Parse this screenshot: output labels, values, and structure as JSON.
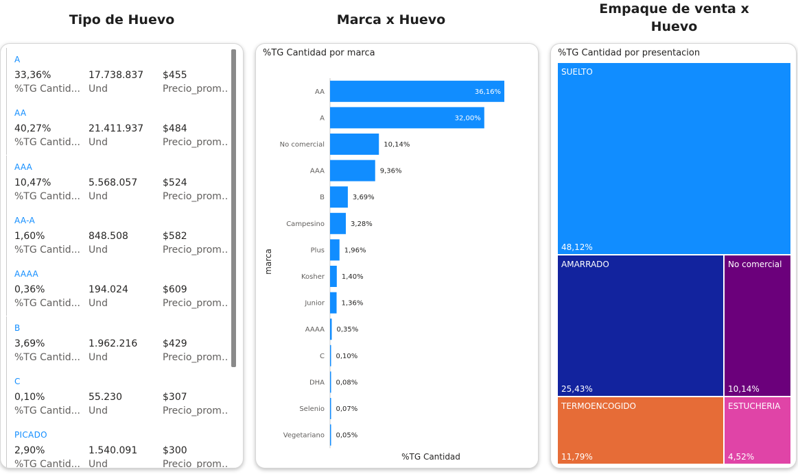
{
  "titles": {
    "tipo": "Tipo de Huevo",
    "marca": "Marca x Huevo",
    "empaque": "Empaque de venta x\nHuevo"
  },
  "list": {
    "items": [
      {
        "name": "A",
        "pct": "33,36%",
        "und": "17.738.837",
        "precio": "$455"
      },
      {
        "name": "AA",
        "pct": "40,27%",
        "und": "21.411.937",
        "precio": "$484"
      },
      {
        "name": "AAA",
        "pct": "10,47%",
        "und": "5.568.057",
        "precio": "$524"
      },
      {
        "name": "AA-A",
        "pct": "1,60%",
        "und": "848.508",
        "precio": "$582"
      },
      {
        "name": "AAAA",
        "pct": "0,36%",
        "und": "194.024",
        "precio": "$609"
      },
      {
        "name": "B",
        "pct": "3,69%",
        "und": "1.962.216",
        "precio": "$429"
      },
      {
        "name": "C",
        "pct": "0,10%",
        "und": "55.230",
        "precio": "$307"
      },
      {
        "name": "PICADO",
        "pct": "2,90%",
        "und": "1.540.091",
        "precio": "$300"
      }
    ],
    "label_pct": "%TG Cantid...",
    "label_und": "Und",
    "label_precio": "Precio_prome..."
  },
  "chart_data": {
    "type": "bar",
    "orientation": "horizontal",
    "title": "%TG Cantidad por marca",
    "xlabel": "%TG Cantidad",
    "ylabel": "marca",
    "categories": [
      "AA",
      "A",
      "No comercial",
      "AAA",
      "B",
      "Campesino",
      "Plus",
      "Kosher",
      "Junior",
      "AAAA",
      "C",
      "DHA",
      "Selenio",
      "Vegetariano"
    ],
    "values": [
      36.16,
      32.0,
      10.14,
      9.36,
      3.69,
      3.28,
      1.96,
      1.4,
      1.36,
      0.35,
      0.1,
      0.08,
      0.07,
      0.05
    ],
    "labels": [
      "36,16%",
      "32,00%",
      "10,14%",
      "9,36%",
      "3,69%",
      "3,28%",
      "1,96%",
      "1,40%",
      "1,36%",
      "0,35%",
      "0,10%",
      "0,08%",
      "0,07%",
      "0,05%"
    ],
    "xlim": [
      0,
      36.16
    ],
    "color": "#118dff"
  },
  "treemap": {
    "title": "%TG Cantidad por presentacion",
    "tiles": [
      {
        "name": "SUELTO",
        "value": "48,12%",
        "color": "#118dff"
      },
      {
        "name": "AMARRADO",
        "value": "25,43%",
        "color": "#12239e"
      },
      {
        "name": "No comercial",
        "value": "10,14%",
        "color": "#6b007b"
      },
      {
        "name": "TERMOENCOGIDO",
        "value": "11,79%",
        "color": "#e66c37"
      },
      {
        "name": "ESTUCHERIA",
        "value": "4,52%",
        "color": "#e044a7"
      }
    ]
  }
}
